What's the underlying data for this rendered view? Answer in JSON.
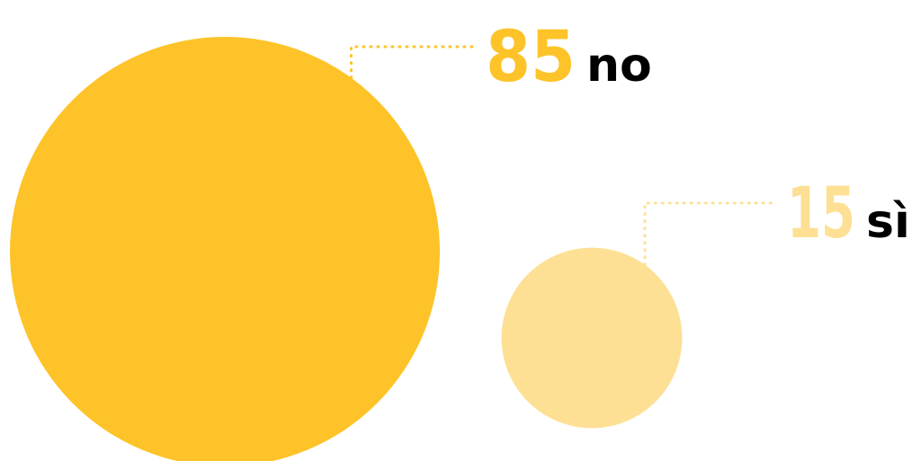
{
  "chart_data": {
    "type": "bubble",
    "title": "",
    "unit": "",
    "items": [
      {
        "label": "no",
        "value": 85,
        "display": "85",
        "color": "#FDC328"
      },
      {
        "label": "sì",
        "value": 15,
        "display": "15",
        "color": "#FDE094"
      }
    ],
    "legend": "none",
    "grid": false,
    "leader_line_style": "dotted"
  }
}
